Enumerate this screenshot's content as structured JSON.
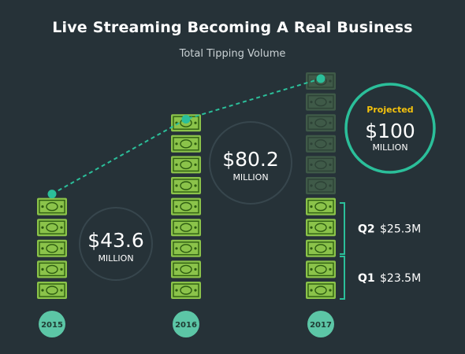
{
  "title": "Live Streaming Becoming A Real Business",
  "subtitle": "Total Tipping Volume",
  "colors": {
    "background": "#263238",
    "bill_green": "#8BC34A",
    "bill_outline": "#2e5d12",
    "bill_faded": "#3f5a48",
    "teal": "#2BBF9A",
    "year_circle": "#5CC6A6",
    "value_circle_stroke": "#37464d",
    "projected_label": "#F4C20D"
  },
  "chart_data": {
    "type": "bar",
    "title": "Live Streaming Becoming A Real Business",
    "subtitle": "Total Tipping Volume",
    "categories": [
      "2015",
      "2016",
      "2017"
    ],
    "values": [
      43.6,
      80.2,
      100
    ],
    "unit": "MILLION",
    "value_labels": [
      {
        "amount": "$43.6",
        "unit": "MILLION"
      },
      {
        "amount": "$80.2",
        "unit": "MILLION"
      },
      {
        "amount": "$100",
        "unit": "MILLION",
        "badge": "Projected"
      }
    ],
    "projected": [
      false,
      false,
      true
    ],
    "breakdown_2017": [
      {
        "label": "Q2",
        "value": 25.3,
        "text": "$25.3M"
      },
      {
        "label": "Q1",
        "value": 23.5,
        "text": "$23.5M"
      }
    ],
    "trend_line": "dashed"
  }
}
